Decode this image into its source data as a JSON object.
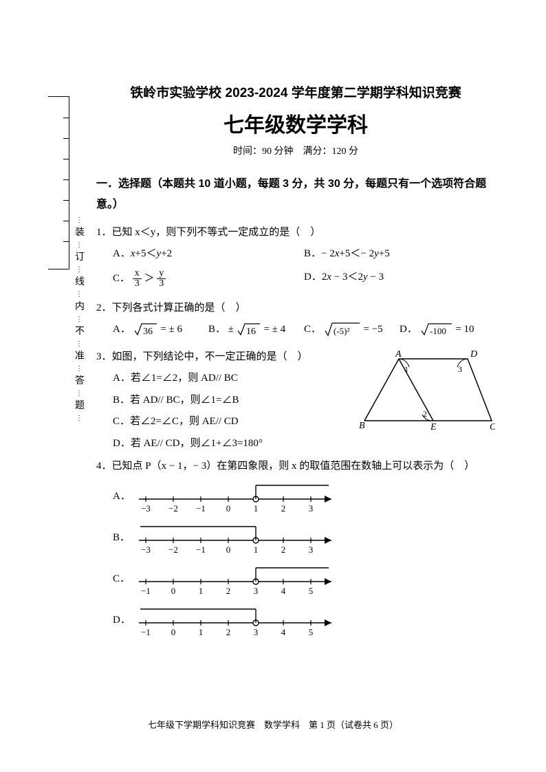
{
  "binding": {
    "chars": [
      "装",
      "订",
      "线",
      "内",
      "不",
      "准",
      "答",
      "题"
    ]
  },
  "header": {
    "title1": "铁岭市实验学校 2023-2024 学年度第二学期学科知识竞赛",
    "title2": "七年级数学学科",
    "subtitle": "时间：90 分钟 满分：120 分"
  },
  "section1": {
    "header": "一．选择题（本题共 10 道小题，每题 3 分，共 30 分，每题只有一个选项符合题意。）"
  },
  "q1": {
    "stem": "1．已知 x＜y，则下列不等式一定成立的是（ ）",
    "optA_label": "A．",
    "optA_text": "x+5＜y+2",
    "optB_label": "B．",
    "optB_text": "− 2x+5＜− 2y+5",
    "optC_label": "C．",
    "optD_label": "D．",
    "optD_text": "2x − 3＜2y − 3",
    "frac_x": "x",
    "frac_y": "y",
    "frac_3a": "3",
    "frac_3b": "3",
    "gt": "＞"
  },
  "q2": {
    "stem": "2．下列各式计算正确的是（ ）",
    "optA_label": "A．",
    "optB_label": "B．",
    "optC_label": "C．",
    "optD_label": "D．",
    "a_sqrt": "36",
    "a_eq": " = ± 6",
    "b_pm": "±",
    "b_sqrt": "16",
    "b_eq": " = ± 4",
    "c_sqrt": "(-5)²",
    "c_eq": " = −5",
    "d_sqrt": "-100",
    "d_eq": " = 10"
  },
  "q3": {
    "stem": "3．如图，下列结论中，不一定正确的是（ ）",
    "optA": "A．若∠1=∠2，则 AD// BC",
    "optB": "B．若 AD// BC，则∠1=∠B",
    "optC": "C．若∠2=∠C，则 AE// CD",
    "optD": "D．若 AE// CD，则∠1+∠3=180°",
    "figure": {
      "A": "A",
      "B": "B",
      "C": "C",
      "D": "D",
      "E": "E",
      "ang1": "1",
      "ang2": "2",
      "ang3": "3"
    }
  },
  "q4": {
    "stem": "4．已知点 P（x − 1，− 3）在第四象限，则 x 的取值范围在数轴上可以表示为（ ）",
    "labels": {
      "A": "A．",
      "B": "B．",
      "C": "C．",
      "D": "D．"
    },
    "lineA": {
      "ticks": [
        "−3",
        "−2",
        "−1",
        "0",
        "1",
        "2",
        "3"
      ],
      "openAt": 4,
      "dir": "right",
      "bracketUp": true
    },
    "lineB": {
      "ticks": [
        "−3",
        "−2",
        "−1",
        "0",
        "1",
        "2",
        "3"
      ],
      "openAt": 4,
      "dir": "left",
      "bracketUp": true
    },
    "lineC": {
      "ticks": [
        "−1",
        "0",
        "1",
        "2",
        "3",
        "4",
        "5"
      ],
      "openAt": 4,
      "dir": "right",
      "bracketUp": true
    },
    "lineD": {
      "ticks": [
        "−1",
        "0",
        "1",
        "2",
        "3",
        "4",
        "5"
      ],
      "openAt": 4,
      "dir": "left",
      "bracketUp": true
    }
  },
  "footer": {
    "text": "七年级下学期学科知识竞赛 数学学科 第 1 页（试卷共 6 页）"
  }
}
